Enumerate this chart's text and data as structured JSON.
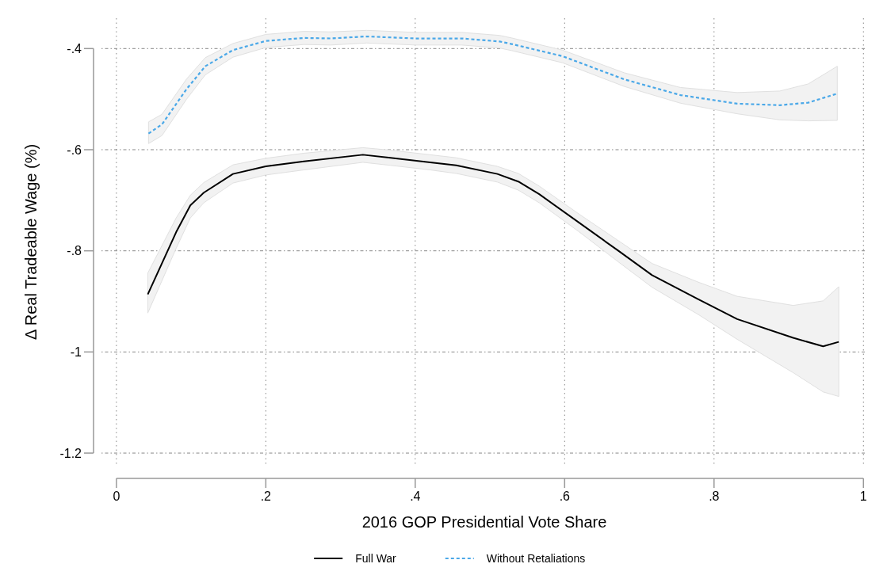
{
  "chart_data": {
    "type": "line",
    "xlabel": "2016 GOP Presidential Vote Share",
    "ylabel": "Δ Real Tradeable Wage (%)",
    "xlim": [
      -0.02,
      1.005
    ],
    "ylim": [
      -1.225,
      -0.34
    ],
    "xticks": [
      0,
      {
        "value": 0.2,
        "label": ".2"
      },
      {
        "value": 0.4,
        "label": ".4"
      },
      {
        "value": 0.6,
        "label": ".6"
      },
      {
        "value": 0.8,
        "label": ".8"
      },
      1
    ],
    "yticks": [
      {
        "value": -1.2,
        "label": "-1.2"
      },
      -1,
      {
        "value": -0.8,
        "label": "-.8"
      },
      {
        "value": -0.6,
        "label": "-.6"
      },
      {
        "value": -0.4,
        "label": "-.4"
      }
    ],
    "grid": true,
    "legend": "bottom",
    "series": [
      {
        "name": "Full War",
        "color": "#000000",
        "line_style": "solid",
        "x": [
          0.042,
          0.08,
          0.099,
          0.117,
          0.156,
          0.2,
          0.251,
          0.33,
          0.367,
          0.42,
          0.455,
          0.51,
          0.538,
          0.566,
          0.619,
          0.672,
          0.717,
          0.779,
          0.831,
          0.906,
          0.946,
          0.967
        ],
        "values": [
          -0.886,
          -0.763,
          -0.71,
          -0.685,
          -0.648,
          -0.633,
          -0.623,
          -0.61,
          -0.616,
          -0.625,
          -0.631,
          -0.648,
          -0.663,
          -0.688,
          -0.744,
          -0.8,
          -0.848,
          -0.896,
          -0.935,
          -0.972,
          -0.989,
          -0.98
        ],
        "upper": [
          -0.844,
          -0.735,
          -0.69,
          -0.665,
          -0.63,
          -0.617,
          -0.607,
          -0.596,
          -0.601,
          -0.61,
          -0.616,
          -0.633,
          -0.647,
          -0.672,
          -0.727,
          -0.78,
          -0.825,
          -0.862,
          -0.89,
          -0.908,
          -0.899,
          -0.871
        ],
        "lower": [
          -0.923,
          -0.795,
          -0.735,
          -0.705,
          -0.666,
          -0.65,
          -0.64,
          -0.625,
          -0.631,
          -0.64,
          -0.647,
          -0.664,
          -0.68,
          -0.705,
          -0.762,
          -0.822,
          -0.872,
          -0.926,
          -0.975,
          -1.041,
          -1.079,
          -1.088
        ]
      },
      {
        "name": "Without Retaliations",
        "color": "#4aa8e8",
        "line_style": "dashed",
        "x": [
          0.043,
          0.061,
          0.094,
          0.119,
          0.156,
          0.2,
          0.251,
          0.287,
          0.335,
          0.4,
          0.462,
          0.513,
          0.529,
          0.597,
          0.68,
          0.755,
          0.831,
          0.888,
          0.926,
          0.965
        ],
        "values": [
          -0.568,
          -0.55,
          -0.48,
          -0.435,
          -0.403,
          -0.385,
          -0.379,
          -0.38,
          -0.376,
          -0.38,
          -0.38,
          -0.386,
          -0.391,
          -0.415,
          -0.461,
          -0.492,
          -0.509,
          -0.512,
          -0.507,
          -0.489
        ],
        "upper": [
          -0.545,
          -0.53,
          -0.46,
          -0.418,
          -0.39,
          -0.372,
          -0.366,
          -0.367,
          -0.364,
          -0.368,
          -0.368,
          -0.374,
          -0.379,
          -0.403,
          -0.448,
          -0.477,
          -0.487,
          -0.484,
          -0.47,
          -0.435
        ],
        "lower": [
          -0.588,
          -0.572,
          -0.5,
          -0.452,
          -0.417,
          -0.398,
          -0.392,
          -0.393,
          -0.389,
          -0.393,
          -0.393,
          -0.399,
          -0.404,
          -0.428,
          -0.475,
          -0.508,
          -0.529,
          -0.541,
          -0.543,
          -0.542
        ]
      }
    ]
  }
}
